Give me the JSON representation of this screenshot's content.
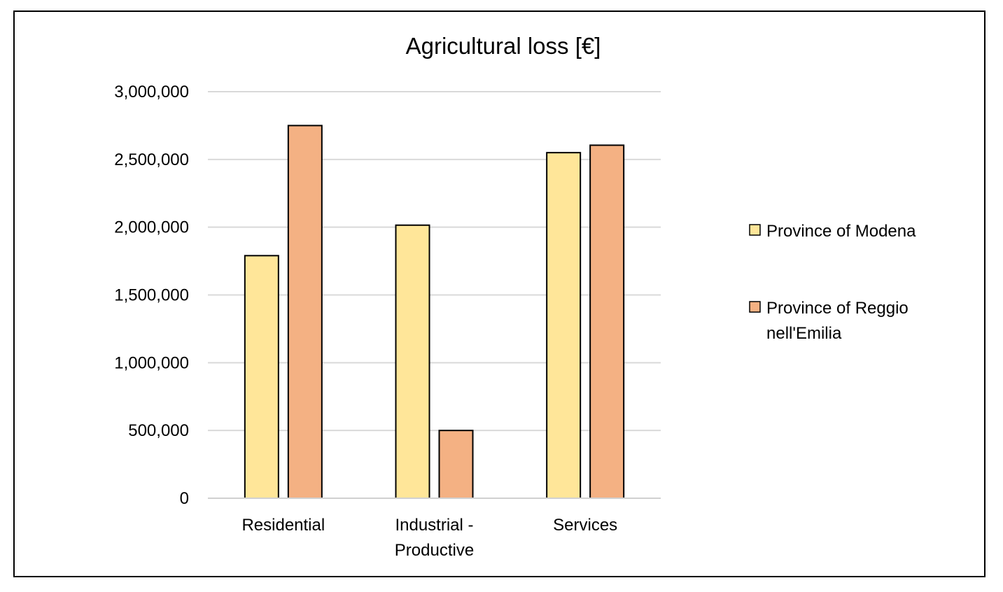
{
  "chart_data": {
    "type": "bar",
    "title": "Agricultural loss [€]",
    "xlabel": "",
    "ylabel": "",
    "categories": [
      [
        "Residential"
      ],
      [
        "Industrial -",
        "Productive"
      ],
      [
        "Services"
      ]
    ],
    "series": [
      {
        "name": "Province of Modena",
        "legend_lines": [
          "Province of Modena"
        ],
        "color": "#FFE699",
        "values": [
          1790000,
          2015000,
          2550000
        ]
      },
      {
        "name": "Province of Reggio nell'Emilia",
        "legend_lines": [
          "Province of Reggio",
          "nell'Emilia"
        ],
        "color": "#F4B183",
        "values": [
          2750000,
          500000,
          2605000
        ]
      }
    ],
    "ylim": [
      0,
      3000000
    ],
    "yticks": [
      0,
      500000,
      1000000,
      1500000,
      2000000,
      2500000,
      3000000
    ],
    "ytick_labels": [
      "0",
      "500,000",
      "1,000,000",
      "1,500,000",
      "2,000,000",
      "2,500,000",
      "3,000,000"
    ],
    "grid": true,
    "legend_position": "right"
  }
}
